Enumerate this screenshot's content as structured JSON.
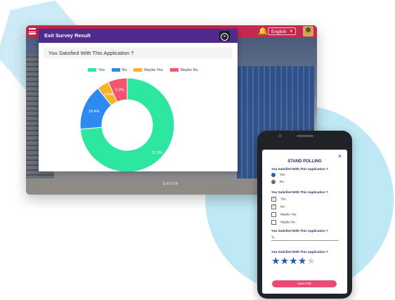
{
  "window": {
    "language": "English",
    "enter_label": "ENTER"
  },
  "modal": {
    "title": "Exit Survey Result",
    "question": "You Satisfied With This Application ?"
  },
  "chart_data": {
    "type": "pie",
    "categories": [
      "Yes",
      "No",
      "Maybe Yes",
      "Maybe No"
    ],
    "values": [
      77.3,
      16.4,
      4.4,
      6.9
    ],
    "labels": [
      "77.3%",
      "16.4%",
      "4.4%",
      "6.9%"
    ],
    "colors": [
      "#2de6a0",
      "#2c8af0",
      "#f5b22a",
      "#f2566f"
    ],
    "legend_position": "top",
    "donut": true
  },
  "phone": {
    "title": "STAND POLLING",
    "q1": "You Satisfied With This Application ?",
    "q1_options": [
      "Yes",
      "No"
    ],
    "q2": "You Satisfied With This Application ?",
    "q2_options": [
      "Yes",
      "No",
      "Maybe Yes",
      "Maybe No"
    ],
    "q3": "You Satisfied With This Application ?",
    "q4": "You Satisfied With This Application ?",
    "rating": 4,
    "rating_max": 5,
    "save_label": "Save Poll"
  }
}
